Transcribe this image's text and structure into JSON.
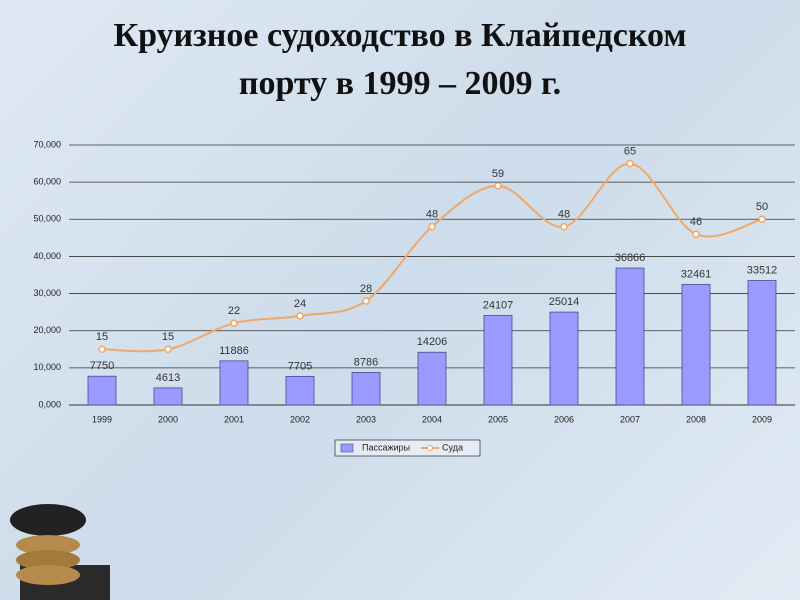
{
  "chart_data": {
    "type": "bar-line",
    "title": [
      "Круизное судоходство в Клайпедском",
      "порту  в 1999 – 2009 г."
    ],
    "categories": [
      "1999",
      "2000",
      "2001",
      "2002",
      "2003",
      "2004",
      "2005",
      "2006",
      "2007",
      "2008",
      "2009"
    ],
    "series": [
      {
        "name": "Пассажиры",
        "type": "bar",
        "color": "#9a9aff",
        "values": [
          7750,
          4613,
          11886,
          7705,
          8786,
          14206,
          24107,
          25014,
          36866,
          32461,
          33512
        ]
      },
      {
        "name": "Суда",
        "type": "line",
        "color": "#f0a868",
        "axis": "y2",
        "values": [
          15,
          15,
          22,
          24,
          28,
          48,
          59,
          48,
          65,
          46,
          50
        ]
      }
    ],
    "ylim": [
      0,
      70000
    ],
    "yticks": [
      {
        "value": 0,
        "label": "0,000"
      },
      {
        "value": 10000,
        "label": "10,000"
      },
      {
        "value": 20000,
        "label": "20,000"
      },
      {
        "value": 30000,
        "label": "30,000"
      },
      {
        "value": 40000,
        "label": "40,000"
      },
      {
        "value": 50000,
        "label": "50,000"
      },
      {
        "value": 60000,
        "label": "60,000"
      },
      {
        "value": 70000,
        "label": "70,000"
      }
    ],
    "y2lim": [
      0,
      70
    ],
    "grid": true,
    "legend": "bottom"
  }
}
